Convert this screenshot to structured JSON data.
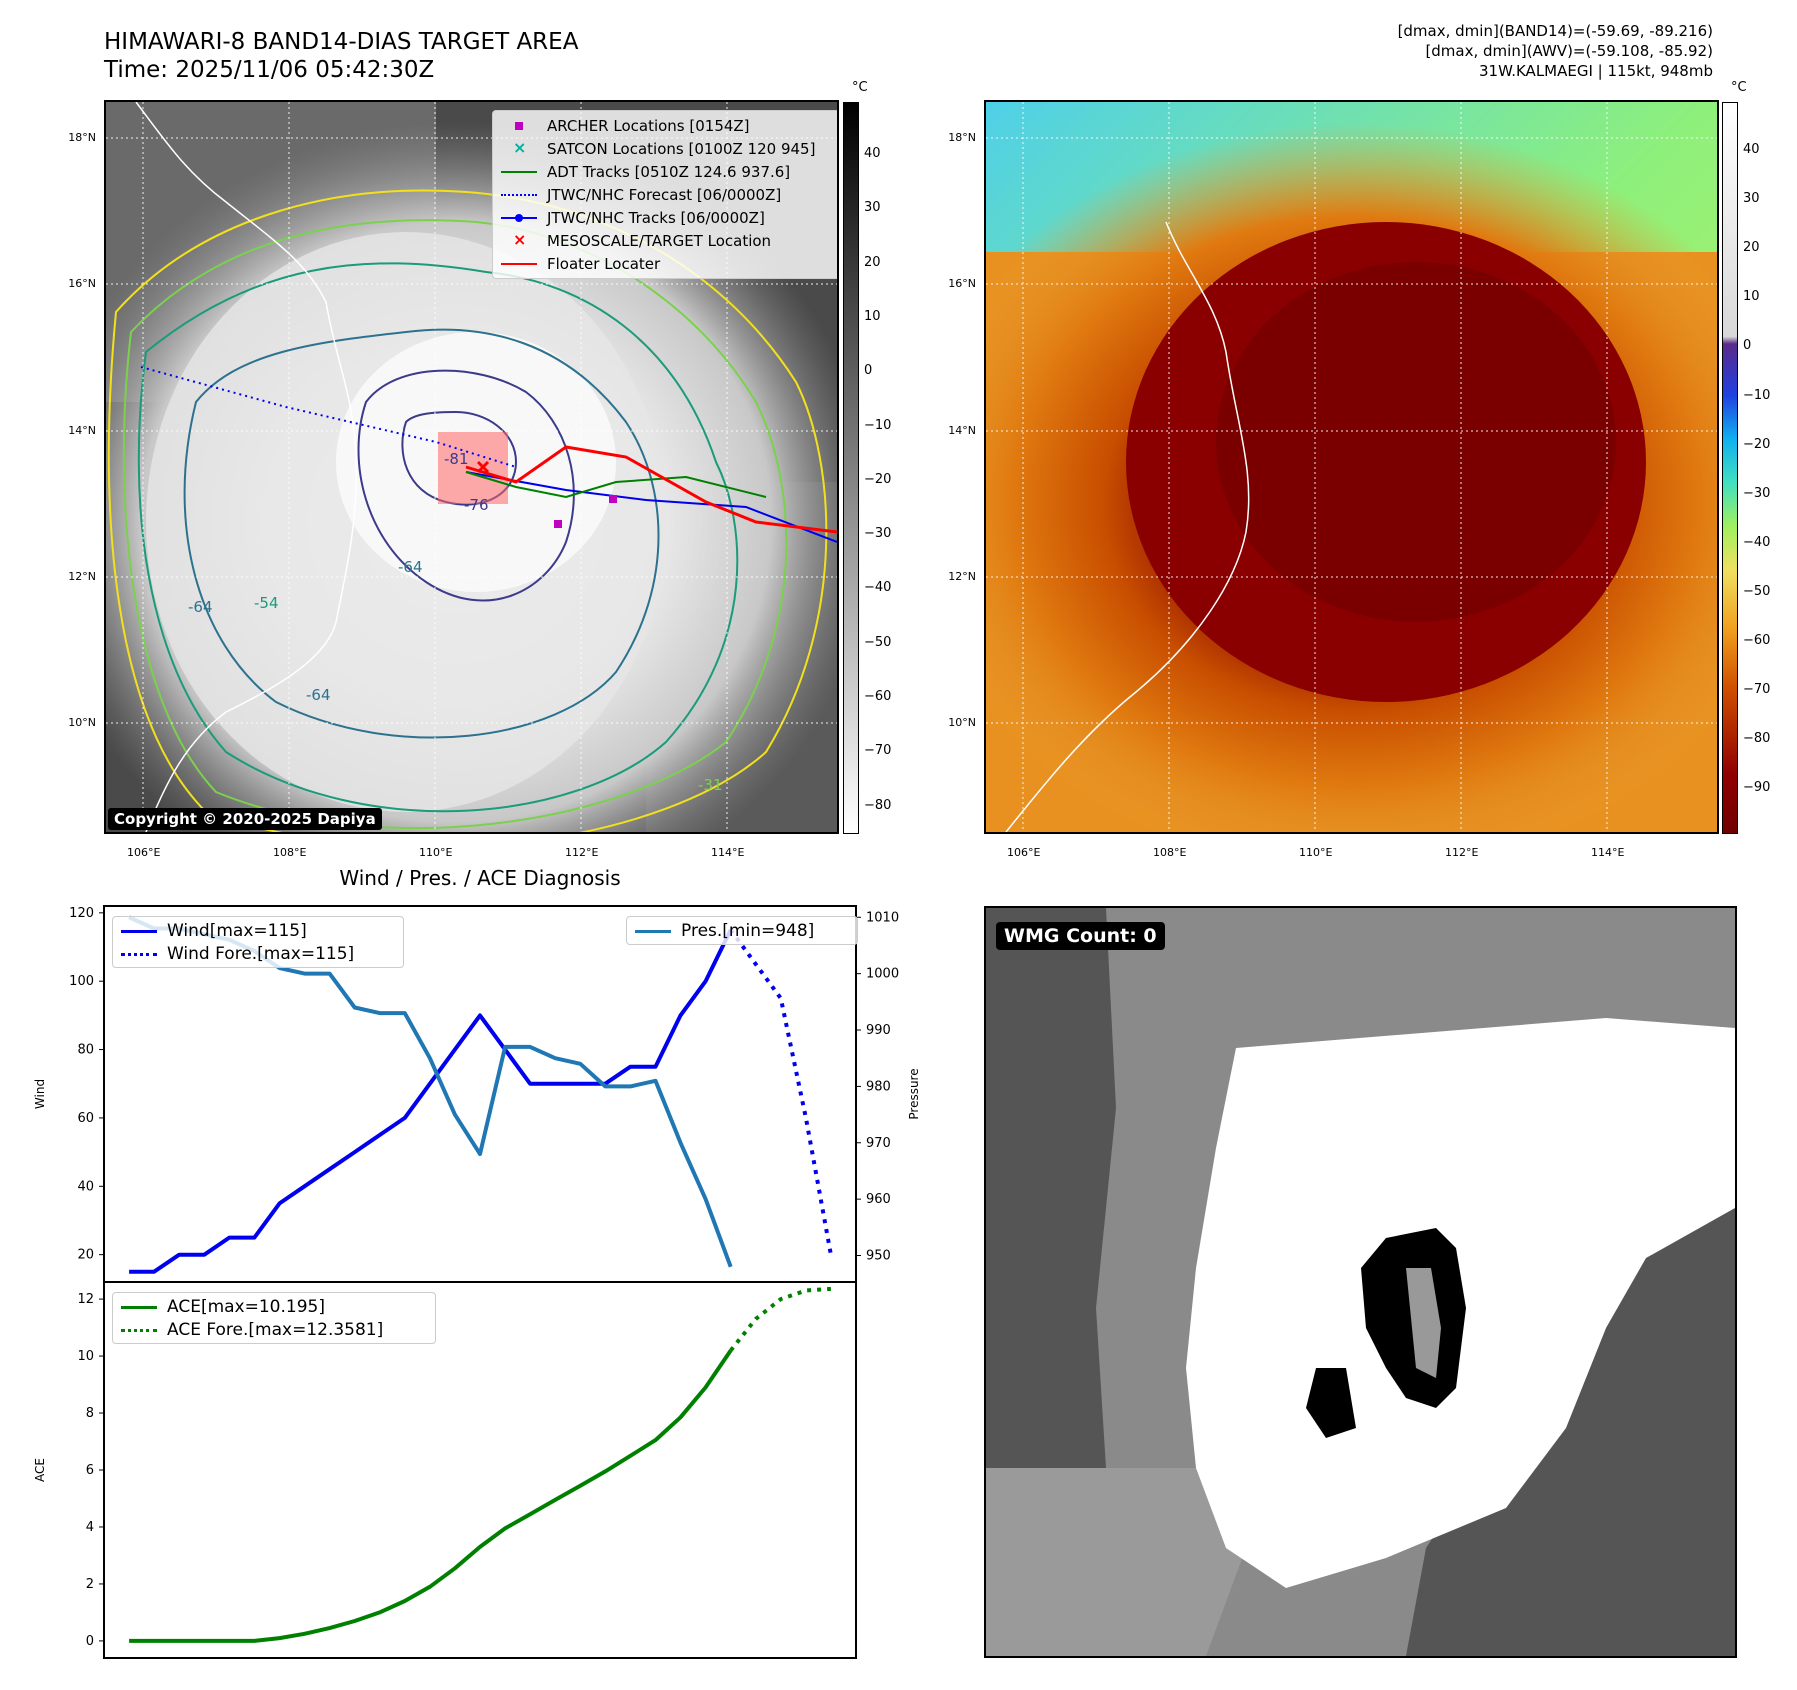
{
  "title": {
    "line1": "HIMAWARI-8 BAND14-DIAS TARGET AREA",
    "line2": "Time: 2025/11/06 05:42:30Z"
  },
  "info": {
    "line1": "[dmax, dmin](BAND14)=(-59.69, -89.216)",
    "line2": "[dmax, dmin](AWV)=(-59.108, -85.92)",
    "line3": "31W.KALMAEGI | 115kt, 948mb"
  },
  "map": {
    "lat_labels": [
      "18°N",
      "16°N",
      "14°N",
      "12°N",
      "10°N"
    ],
    "lon_labels": [
      "106°E",
      "108°E",
      "110°E",
      "112°E",
      "114°E"
    ],
    "copyright": "Copyright © 2020-2025 Dapiya",
    "contour_labels": [
      "-64",
      "-54",
      "-31",
      "-76",
      "-81"
    ],
    "legend": [
      {
        "label": "ARCHER Locations [0154Z]",
        "color": "#c000c0",
        "kind": "square"
      },
      {
        "label": "SATCON Locations [0100Z 120 945]",
        "color": "#00b0a0",
        "kind": "x"
      },
      {
        "label": "ADT Tracks [0510Z 124.6 937.6]",
        "color": "#008000",
        "kind": "line"
      },
      {
        "label": "JTWC/NHC Forecast [06/0000Z]",
        "color": "#0000ff",
        "kind": "dotted"
      },
      {
        "label": "JTWC/NHC Tracks [06/0000Z]",
        "color": "#0000ff",
        "kind": "linepoint"
      },
      {
        "label": "MESOSCALE/TARGET Location",
        "color": "#ff0000",
        "kind": "x"
      },
      {
        "label": "Floater Locater",
        "color": "#ff0000",
        "kind": "line"
      }
    ]
  },
  "colorbar_gray": {
    "unit": "°C",
    "ticks": [
      "40",
      "30",
      "20",
      "10",
      "0",
      "−10",
      "−20",
      "−30",
      "−40",
      "−50",
      "−60",
      "−70",
      "−80"
    ]
  },
  "colorbar_color": {
    "unit": "°C",
    "ticks": [
      "40",
      "30",
      "20",
      "10",
      "0",
      "−10",
      "−20",
      "−30",
      "−40",
      "−50",
      "−60",
      "−70",
      "−80",
      "−90"
    ]
  },
  "wmg": {
    "label": "WMG Count: 0"
  },
  "chart_data": [
    {
      "type": "line",
      "title": "Wind / Pres. / ACE Diagnosis",
      "ylabel": "Wind",
      "ylabel_right": "Pressure",
      "ylim": [
        12,
        122
      ],
      "ylim_right": [
        945.3,
        1012
      ],
      "yticks": [
        20,
        40,
        60,
        80,
        100,
        120
      ],
      "yticks_right": [
        950,
        960,
        970,
        980,
        990,
        1000,
        1010
      ],
      "series": [
        {
          "name": "Wind[max=115]",
          "axis": "left",
          "color": "#0000ee",
          "style": "solid",
          "x": [
            0,
            1,
            2,
            3,
            4,
            5,
            6,
            7,
            8,
            9,
            10,
            11,
            12,
            13,
            14,
            15,
            16,
            17,
            18,
            19,
            20,
            21,
            22,
            23,
            24
          ],
          "values": [
            15,
            15,
            20,
            20,
            25,
            25,
            35,
            40,
            45,
            50,
            55,
            60,
            70,
            80,
            90,
            80,
            70,
            70,
            70,
            70,
            75,
            75,
            90,
            100,
            115
          ]
        },
        {
          "name": "Wind Fore.[max=115]",
          "axis": "left",
          "color": "#0000ee",
          "style": "dotted",
          "x": [
            24,
            25,
            26,
            27,
            28
          ],
          "values": [
            115,
            105,
            95,
            60,
            20
          ]
        },
        {
          "name": "Pres.[min=948]",
          "axis": "right",
          "color": "#1f77b4",
          "style": "solid",
          "x": [
            0,
            1,
            2,
            3,
            4,
            5,
            6,
            7,
            8,
            9,
            10,
            11,
            12,
            13,
            14,
            15,
            16,
            17,
            18,
            19,
            20,
            21,
            22,
            23,
            24
          ],
          "values": [
            1010,
            1008,
            1008,
            1007,
            1006,
            1004,
            1001,
            1000,
            1000,
            994,
            993,
            993,
            985,
            975,
            968,
            987,
            987,
            985,
            984,
            980,
            980,
            981,
            970,
            960,
            948
          ]
        }
      ]
    },
    {
      "type": "line",
      "ylabel": "ACE",
      "ylim": [
        -0.6,
        12.6
      ],
      "yticks": [
        0,
        2,
        4,
        6,
        8,
        10,
        12
      ],
      "series": [
        {
          "name": "ACE[max=10.195]",
          "color": "#008000",
          "style": "solid",
          "x": [
            0,
            1,
            2,
            3,
            4,
            5,
            6,
            7,
            8,
            9,
            10,
            11,
            12,
            13,
            14,
            15,
            16,
            17,
            18,
            19,
            20,
            21,
            22,
            23,
            24
          ],
          "values": [
            0,
            0,
            0,
            0,
            0,
            0,
            0.1,
            0.25,
            0.45,
            0.7,
            1.0,
            1.4,
            1.9,
            2.55,
            3.3,
            3.95,
            4.45,
            4.95,
            5.45,
            5.95,
            6.5,
            7.05,
            7.85,
            8.9,
            10.195
          ]
        },
        {
          "name": "ACE Fore.[max=12.3581]",
          "color": "#008000",
          "style": "dotted",
          "x": [
            24,
            25,
            26,
            27,
            28
          ],
          "values": [
            10.195,
            11.3,
            12.0,
            12.3,
            12.3581
          ]
        }
      ]
    }
  ]
}
